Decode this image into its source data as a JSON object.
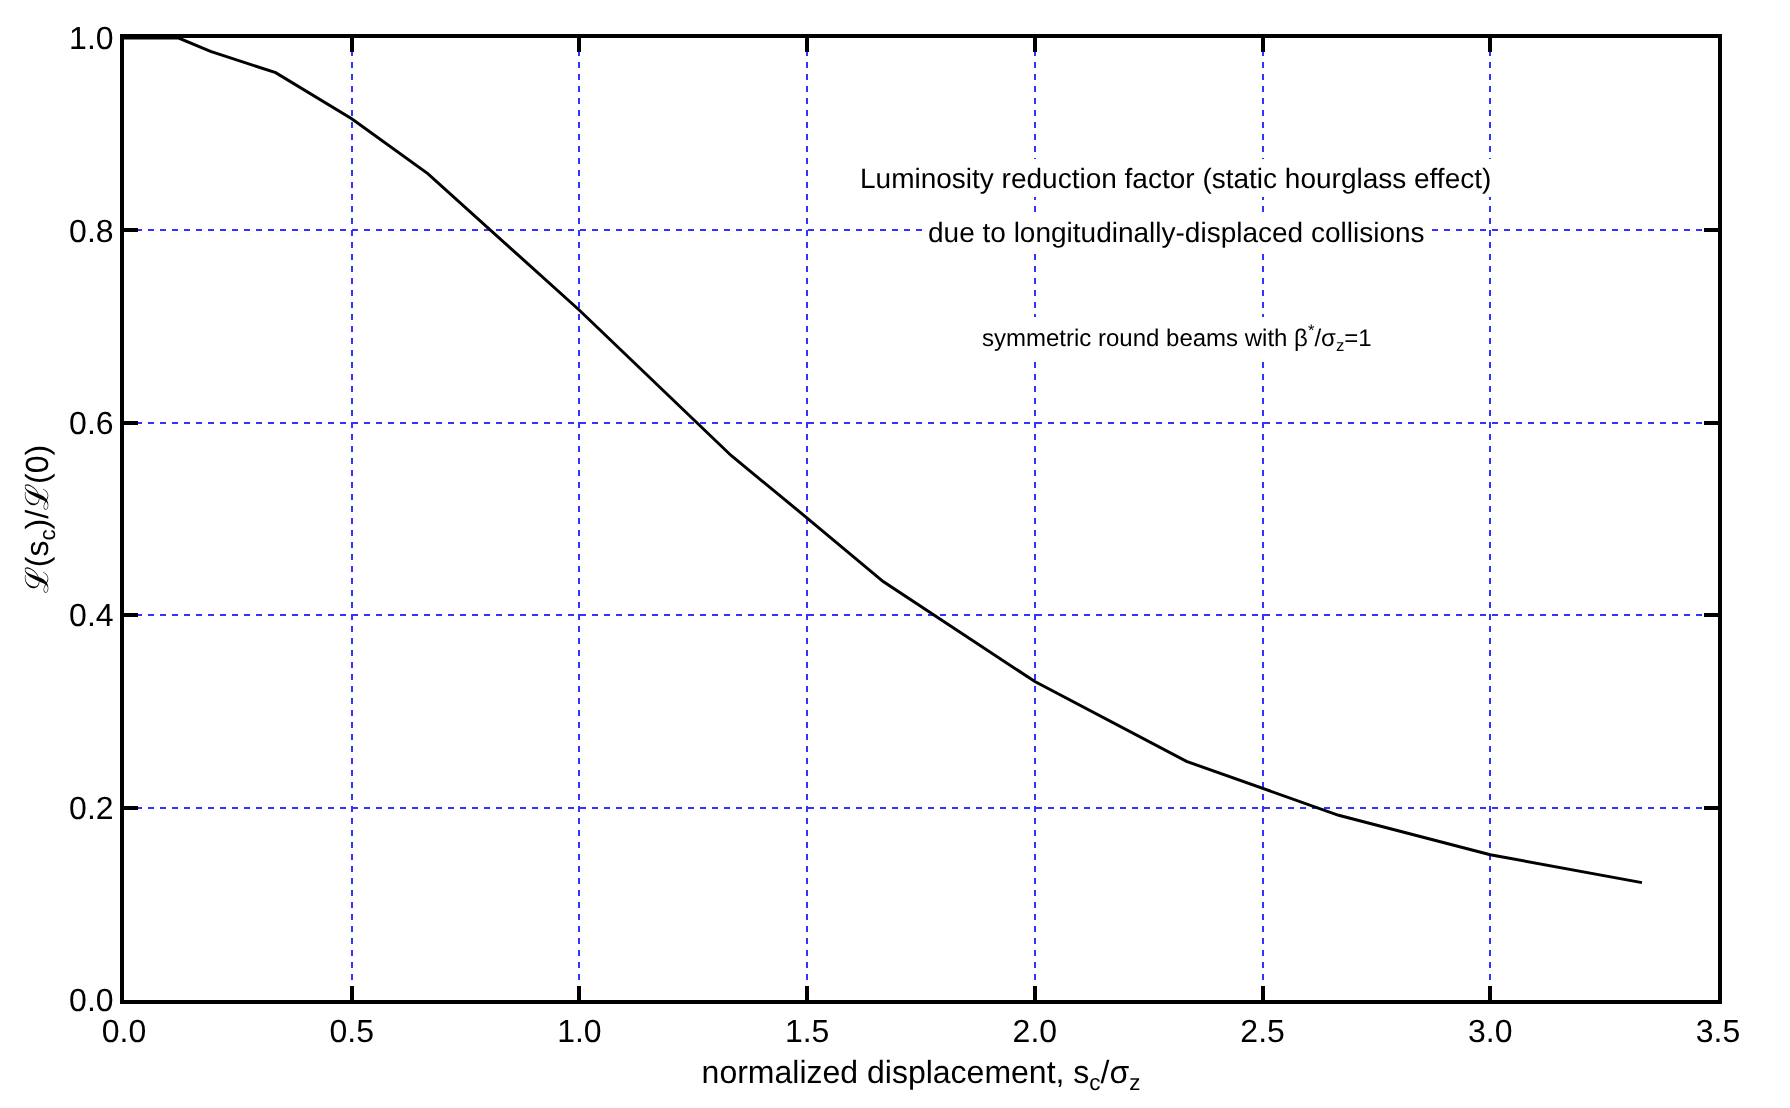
{
  "chart_data": {
    "type": "line",
    "xlabel": "normalized displacement, s$_{c}$/σ$_{z}$",
    "ylabel": "ℒ(s$_{c}$)/ℒ(0)",
    "annotations": [
      "Luminosity reduction factor (static hourglass effect)",
      "due to longitudinally-displaced collisions",
      "symmetric round beams with β$^{*}$/σ$_{z}$=1"
    ],
    "x": [
      0,
      0.12,
      0.19,
      0.333,
      0.5,
      0.667,
      1.0,
      1.333,
      1.5,
      1.667,
      2.0,
      2.333,
      2.667,
      3.0,
      3.333
    ],
    "series": [
      {
        "color": "#000000",
        "values": [
          1.0,
          1.0,
          0.986,
          0.964,
          0.916,
          0.859,
          0.717,
          0.566,
          0.501,
          0.435,
          0.331,
          0.248,
          0.192,
          0.151,
          0.122
        ]
      }
    ],
    "xlim": [
      0,
      3.5
    ],
    "xticks": [
      {
        "value": 0,
        "label": "0.0"
      },
      0.5,
      {
        "value": 1,
        "label": "1.0"
      },
      1.5,
      {
        "value": 2,
        "label": "2.0"
      },
      2.5,
      {
        "value": 3,
        "label": "3.0"
      },
      3.5
    ],
    "ylim": [
      0,
      1
    ],
    "yticks": [
      {
        "value": 0,
        "label": "0.0"
      },
      0.2,
      0.4,
      0.6,
      0.8,
      {
        "value": 1,
        "label": "1.0"
      }
    ],
    "grid": true,
    "marker": "none",
    "line_style": "solid"
  }
}
